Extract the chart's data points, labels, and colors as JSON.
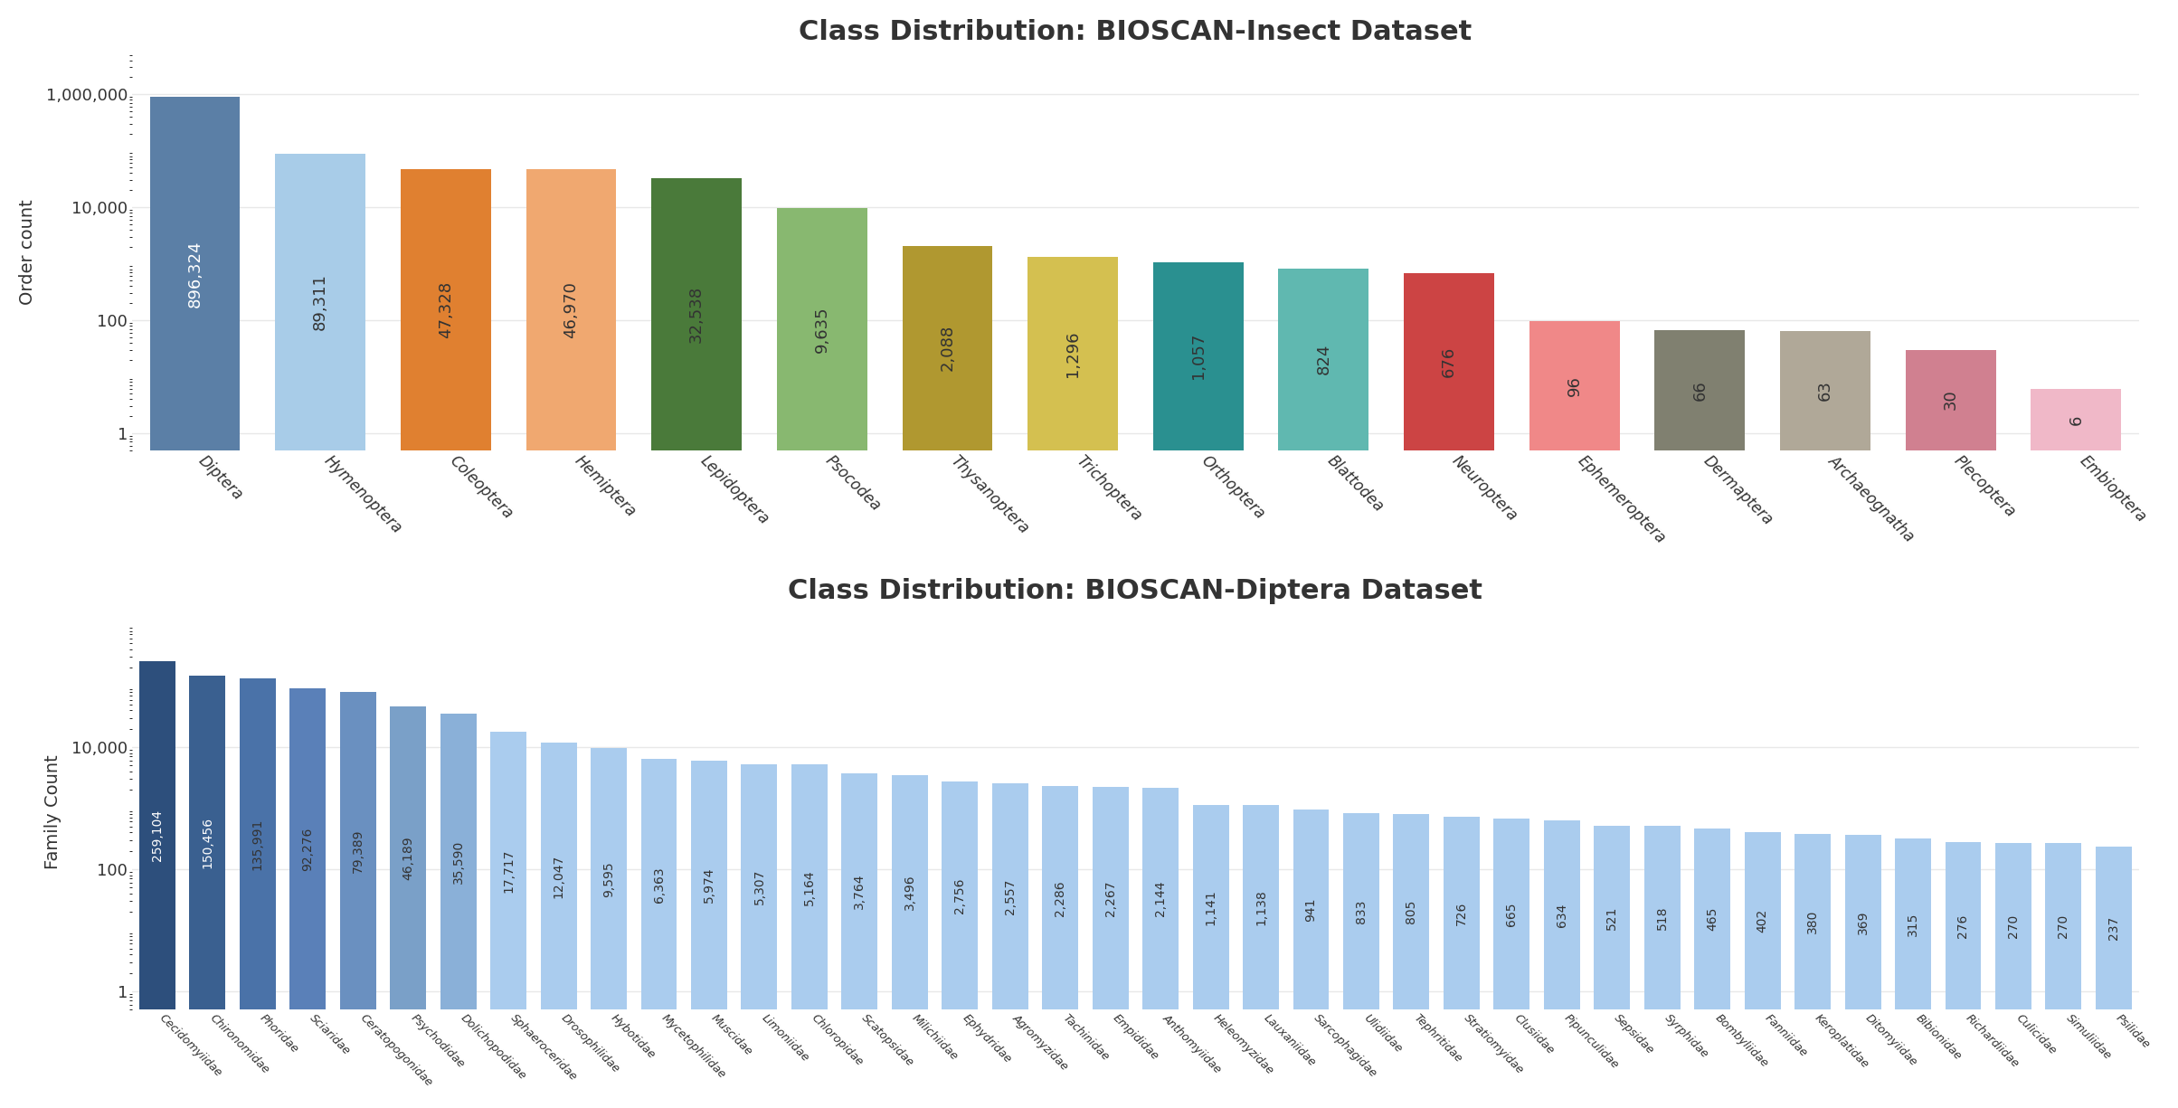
{
  "insect_title": "Class Distribution: BIOSCAN-Insect Dataset",
  "insect_ylabel": "Order count",
  "insect_categories": [
    "Diptera",
    "Hymenoptera",
    "Coleoptera",
    "Hemiptera",
    "Lepidoptera",
    "Psocodea",
    "Thysanoptera",
    "Trichoptera",
    "Orthoptera",
    "Blattodea",
    "Neuroptera",
    "Ephemeroptera",
    "Dermaptera",
    "Archaeognatha",
    "Plecoptera",
    "Embioptera"
  ],
  "insect_values": [
    896324,
    89311,
    47328,
    46970,
    32538,
    9635,
    2088,
    1296,
    1057,
    824,
    676,
    96,
    66,
    63,
    30,
    6
  ],
  "insect_colors": [
    "#5b7fa6",
    "#a8cce8",
    "#e08030",
    "#f0a870",
    "#4a7a3a",
    "#88b870",
    "#b09830",
    "#d4c050",
    "#2a9090",
    "#60b8b0",
    "#cc4444",
    "#f08888",
    "#808070",
    "#b0a898",
    "#d08090",
    "#f0b8c8"
  ],
  "diptera_title": "Class Distribution: BIOSCAN-Diptera Dataset",
  "diptera_ylabel": "Family Count",
  "diptera_categories": [
    "Cecidomyiidae",
    "Chironomidae",
    "Phoridae",
    "Sciaridae",
    "Ceratopogonidae",
    "Psychodidae",
    "Dolichopodidae",
    "Sphaeroceridae",
    "Drosophilidae",
    "Hybotidae",
    "Mycetophilidae",
    "Muscidae",
    "Limoniidae",
    "Chloropidae",
    "Scatopsidae",
    "Milichiidae",
    "Ephydridae",
    "Agromyzidae",
    "Tachinidae",
    "Empididae",
    "Anthomyiidae",
    "Heleomyzidae",
    "Lauxaniidae",
    "Sarcophagidae",
    "Ulidiidae",
    "Tephritidae",
    "Stratiomyidae",
    "Clusiidae",
    "Pipunculidae",
    "Sepsidae",
    "Syrphidae",
    "Bombyliidae",
    "Fanniidae",
    "Keroplatidae",
    "Ditomyiidae",
    "Bibionidae",
    "Richardiidae",
    "Culicidae",
    "Simuliidae",
    "Psilidae"
  ],
  "diptera_values": [
    259104,
    150456,
    135991,
    92276,
    79389,
    46189,
    35590,
    17717,
    12047,
    9595,
    6363,
    5974,
    5307,
    5164,
    3764,
    3496,
    2756,
    2557,
    2286,
    2267,
    2144,
    1141,
    1138,
    941,
    833,
    805,
    726,
    665,
    634,
    521,
    518,
    465,
    402,
    380,
    369,
    315,
    276,
    270,
    270,
    237
  ],
  "diptera_colors": [
    "#2d4f7c",
    "#3a6090",
    "#4a72a8",
    "#5a80b8",
    "#6a90c0",
    "#7aa0c8",
    "#8ab0d8",
    "#aaccee",
    "#aaccee",
    "#aaccee",
    "#aaccee",
    "#aaccee",
    "#aaccee",
    "#aaccee",
    "#aaccee",
    "#aaccee",
    "#aaccee",
    "#aaccee",
    "#aaccee",
    "#aaccee",
    "#aaccee",
    "#aaccee",
    "#aaccee",
    "#aaccee",
    "#aaccee",
    "#aaccee",
    "#aaccee",
    "#aaccee",
    "#aaccee",
    "#aaccee",
    "#aaccee",
    "#aaccee",
    "#aaccee",
    "#aaccee",
    "#aaccee",
    "#aaccee",
    "#aaccee",
    "#aaccee",
    "#aaccee",
    "#aaccee"
  ],
  "bg_color": "#ffffff",
  "grid_color": "#e8e8e8",
  "text_color": "#333333",
  "title_fontsize": 22,
  "label_fontsize": 14,
  "tick_fontsize": 13,
  "bar_label_fontsize_insect": 13,
  "bar_label_fontsize_diptera": 10
}
